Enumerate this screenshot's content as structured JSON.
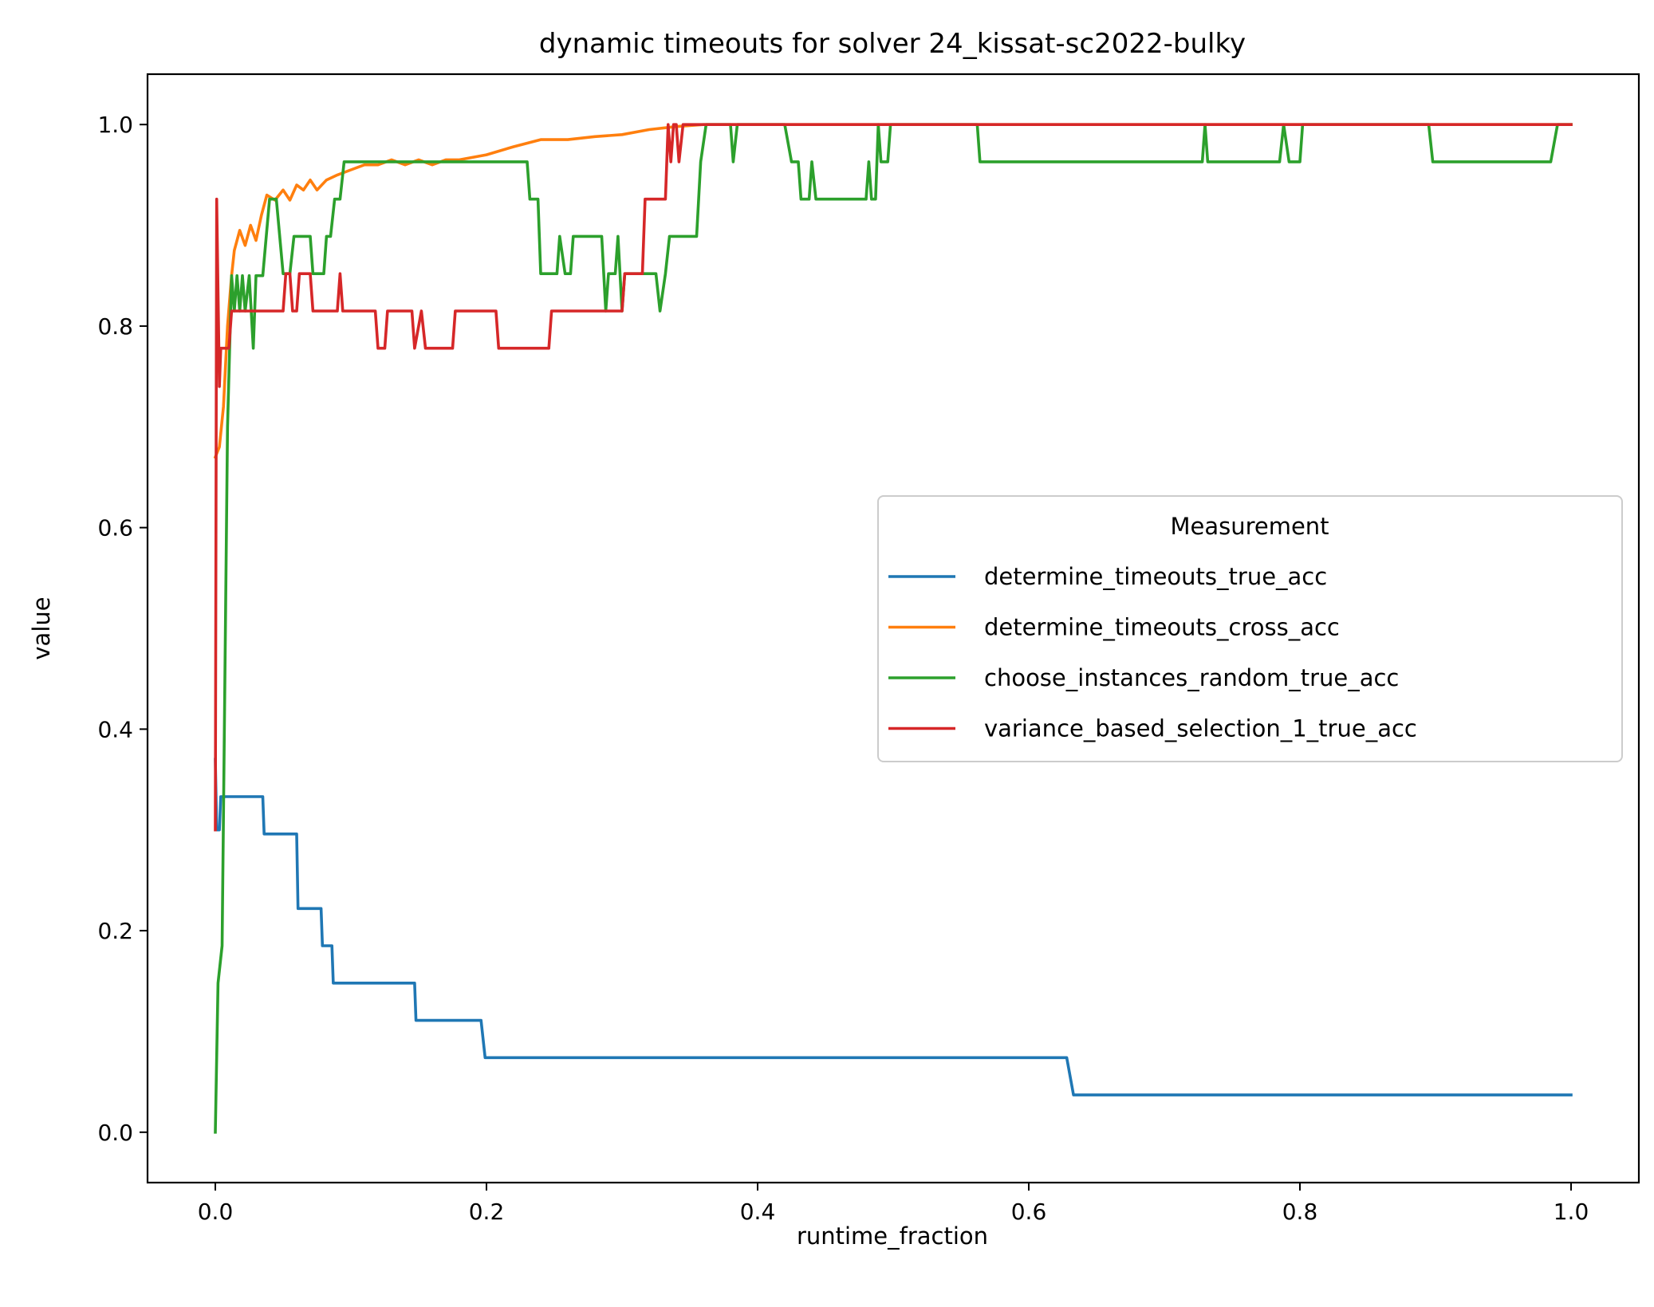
{
  "chart_data": {
    "type": "line",
    "title": "dynamic timeouts for solver 24_kissat-sc2022-bulky",
    "xlabel": "runtime_fraction",
    "ylabel": "value",
    "xlim": [
      -0.05,
      1.05
    ],
    "ylim": [
      -0.05,
      1.05
    ],
    "xticks": [
      0.0,
      0.2,
      0.4,
      0.6,
      0.8,
      1.0
    ],
    "xtick_labels": [
      "0.0",
      "0.2",
      "0.4",
      "0.6",
      "0.8",
      "1.0"
    ],
    "yticks": [
      0.0,
      0.2,
      0.4,
      0.6,
      0.8,
      1.0
    ],
    "ytick_labels": [
      "0.0",
      "0.2",
      "0.4",
      "0.6",
      "0.8",
      "1.0"
    ],
    "grid": false,
    "legend": {
      "title": "Measurement",
      "placement": "center-right"
    },
    "series": [
      {
        "name": "determine_timeouts_true_acc",
        "color": "#1f77b4",
        "points": [
          [
            0.0,
            0.37
          ],
          [
            0.001,
            0.3
          ],
          [
            0.003,
            0.3
          ],
          [
            0.004,
            0.333
          ],
          [
            0.035,
            0.333
          ],
          [
            0.036,
            0.296
          ],
          [
            0.06,
            0.296
          ],
          [
            0.061,
            0.222
          ],
          [
            0.078,
            0.222
          ],
          [
            0.079,
            0.185
          ],
          [
            0.086,
            0.185
          ],
          [
            0.087,
            0.148
          ],
          [
            0.147,
            0.148
          ],
          [
            0.148,
            0.111
          ],
          [
            0.196,
            0.111
          ],
          [
            0.199,
            0.074
          ],
          [
            0.628,
            0.074
          ],
          [
            0.633,
            0.037
          ],
          [
            1.0,
            0.037
          ]
        ]
      },
      {
        "name": "determine_timeouts_cross_acc",
        "color": "#ff7f0e",
        "points": [
          [
            0.0,
            0.67
          ],
          [
            0.003,
            0.68
          ],
          [
            0.006,
            0.72
          ],
          [
            0.009,
            0.8
          ],
          [
            0.012,
            0.85
          ],
          [
            0.014,
            0.875
          ],
          [
            0.018,
            0.895
          ],
          [
            0.022,
            0.88
          ],
          [
            0.026,
            0.9
          ],
          [
            0.03,
            0.885
          ],
          [
            0.034,
            0.91
          ],
          [
            0.038,
            0.93
          ],
          [
            0.044,
            0.925
          ],
          [
            0.05,
            0.935
          ],
          [
            0.055,
            0.925
          ],
          [
            0.06,
            0.94
          ],
          [
            0.065,
            0.935
          ],
          [
            0.07,
            0.945
          ],
          [
            0.075,
            0.935
          ],
          [
            0.082,
            0.945
          ],
          [
            0.09,
            0.95
          ],
          [
            0.1,
            0.955
          ],
          [
            0.11,
            0.96
          ],
          [
            0.12,
            0.96
          ],
          [
            0.13,
            0.965
          ],
          [
            0.14,
            0.96
          ],
          [
            0.15,
            0.965
          ],
          [
            0.16,
            0.96
          ],
          [
            0.17,
            0.965
          ],
          [
            0.18,
            0.965
          ],
          [
            0.2,
            0.97
          ],
          [
            0.22,
            0.978
          ],
          [
            0.24,
            0.985
          ],
          [
            0.26,
            0.985
          ],
          [
            0.28,
            0.988
          ],
          [
            0.3,
            0.99
          ],
          [
            0.32,
            0.995
          ],
          [
            0.34,
            0.998
          ],
          [
            0.36,
            1.0
          ],
          [
            0.38,
            1.0
          ],
          [
            0.4,
            1.0
          ],
          [
            0.5,
            1.0
          ],
          [
            1.0,
            1.0
          ]
        ]
      },
      {
        "name": "choose_instances_random_true_acc",
        "color": "#2ca02c",
        "points": [
          [
            0.0,
            0.0
          ],
          [
            0.002,
            0.148
          ],
          [
            0.005,
            0.185
          ],
          [
            0.009,
            0.7
          ],
          [
            0.012,
            0.85
          ],
          [
            0.014,
            0.815
          ],
          [
            0.016,
            0.85
          ],
          [
            0.018,
            0.815
          ],
          [
            0.02,
            0.85
          ],
          [
            0.022,
            0.815
          ],
          [
            0.025,
            0.85
          ],
          [
            0.028,
            0.778
          ],
          [
            0.03,
            0.85
          ],
          [
            0.035,
            0.85
          ],
          [
            0.04,
            0.926
          ],
          [
            0.045,
            0.926
          ],
          [
            0.05,
            0.852
          ],
          [
            0.055,
            0.852
          ],
          [
            0.058,
            0.889
          ],
          [
            0.07,
            0.889
          ],
          [
            0.072,
            0.852
          ],
          [
            0.08,
            0.852
          ],
          [
            0.082,
            0.889
          ],
          [
            0.085,
            0.889
          ],
          [
            0.088,
            0.926
          ],
          [
            0.092,
            0.926
          ],
          [
            0.095,
            0.963
          ],
          [
            0.23,
            0.963
          ],
          [
            0.232,
            0.926
          ],
          [
            0.238,
            0.926
          ],
          [
            0.24,
            0.852
          ],
          [
            0.252,
            0.852
          ],
          [
            0.254,
            0.889
          ],
          [
            0.258,
            0.852
          ],
          [
            0.262,
            0.852
          ],
          [
            0.264,
            0.889
          ],
          [
            0.285,
            0.889
          ],
          [
            0.288,
            0.815
          ],
          [
            0.29,
            0.852
          ],
          [
            0.295,
            0.852
          ],
          [
            0.297,
            0.889
          ],
          [
            0.3,
            0.815
          ],
          [
            0.302,
            0.852
          ],
          [
            0.325,
            0.852
          ],
          [
            0.328,
            0.815
          ],
          [
            0.332,
            0.852
          ],
          [
            0.335,
            0.889
          ],
          [
            0.355,
            0.889
          ],
          [
            0.358,
            0.963
          ],
          [
            0.362,
            1.0
          ],
          [
            0.38,
            1.0
          ],
          [
            0.382,
            0.963
          ],
          [
            0.385,
            1.0
          ],
          [
            0.42,
            1.0
          ],
          [
            0.425,
            0.963
          ],
          [
            0.43,
            0.963
          ],
          [
            0.432,
            0.926
          ],
          [
            0.438,
            0.926
          ],
          [
            0.44,
            0.963
          ],
          [
            0.443,
            0.926
          ],
          [
            0.48,
            0.926
          ],
          [
            0.482,
            0.963
          ],
          [
            0.484,
            0.926
          ],
          [
            0.487,
            0.926
          ],
          [
            0.489,
            1.0
          ],
          [
            0.491,
            0.963
          ],
          [
            0.496,
            0.963
          ],
          [
            0.498,
            1.0
          ],
          [
            0.562,
            1.0
          ],
          [
            0.564,
            0.963
          ],
          [
            0.728,
            0.963
          ],
          [
            0.73,
            1.0
          ],
          [
            0.732,
            0.963
          ],
          [
            0.785,
            0.963
          ],
          [
            0.788,
            1.0
          ],
          [
            0.792,
            0.963
          ],
          [
            0.8,
            0.963
          ],
          [
            0.802,
            1.0
          ],
          [
            0.895,
            1.0
          ],
          [
            0.898,
            0.963
          ],
          [
            0.985,
            0.963
          ],
          [
            0.99,
            1.0
          ],
          [
            1.0,
            1.0
          ]
        ]
      },
      {
        "name": "variance_based_selection_1_true_acc",
        "color": "#d62728",
        "points": [
          [
            0.0,
            0.3
          ],
          [
            0.001,
            0.926
          ],
          [
            0.003,
            0.74
          ],
          [
            0.004,
            0.778
          ],
          [
            0.01,
            0.778
          ],
          [
            0.012,
            0.815
          ],
          [
            0.05,
            0.815
          ],
          [
            0.052,
            0.852
          ],
          [
            0.055,
            0.852
          ],
          [
            0.057,
            0.815
          ],
          [
            0.06,
            0.815
          ],
          [
            0.062,
            0.852
          ],
          [
            0.07,
            0.852
          ],
          [
            0.072,
            0.815
          ],
          [
            0.09,
            0.815
          ],
          [
            0.092,
            0.852
          ],
          [
            0.094,
            0.815
          ],
          [
            0.118,
            0.815
          ],
          [
            0.12,
            0.778
          ],
          [
            0.125,
            0.778
          ],
          [
            0.127,
            0.815
          ],
          [
            0.145,
            0.815
          ],
          [
            0.147,
            0.778
          ],
          [
            0.152,
            0.815
          ],
          [
            0.155,
            0.778
          ],
          [
            0.175,
            0.778
          ],
          [
            0.177,
            0.815
          ],
          [
            0.207,
            0.815
          ],
          [
            0.209,
            0.778
          ],
          [
            0.246,
            0.778
          ],
          [
            0.248,
            0.815
          ],
          [
            0.3,
            0.815
          ],
          [
            0.302,
            0.852
          ],
          [
            0.315,
            0.852
          ],
          [
            0.317,
            0.926
          ],
          [
            0.332,
            0.926
          ],
          [
            0.334,
            1.0
          ],
          [
            0.336,
            0.963
          ],
          [
            0.338,
            1.0
          ],
          [
            0.34,
            1.0
          ],
          [
            0.342,
            0.963
          ],
          [
            0.345,
            1.0
          ],
          [
            1.0,
            1.0
          ]
        ]
      }
    ]
  }
}
